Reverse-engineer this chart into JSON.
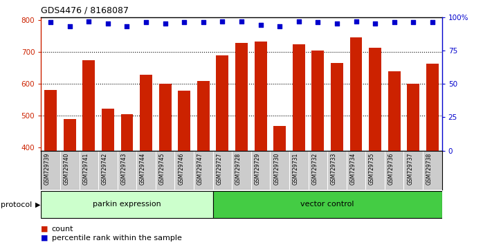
{
  "title": "GDS4476 / 8168087",
  "samples": [
    "GSM729739",
    "GSM729740",
    "GSM729741",
    "GSM729742",
    "GSM729743",
    "GSM729744",
    "GSM729745",
    "GSM729746",
    "GSM729747",
    "GSM729727",
    "GSM729728",
    "GSM729729",
    "GSM729730",
    "GSM729731",
    "GSM729732",
    "GSM729733",
    "GSM729734",
    "GSM729735",
    "GSM729736",
    "GSM729737",
    "GSM729738"
  ],
  "bar_values": [
    580,
    490,
    675,
    522,
    505,
    628,
    600,
    578,
    610,
    690,
    728,
    733,
    467,
    724,
    704,
    665,
    747,
    713,
    640,
    600,
    663
  ],
  "percentile_values": [
    96,
    93,
    97,
    95,
    93,
    96,
    95,
    96,
    96,
    97,
    97,
    94,
    93,
    97,
    96,
    95,
    97,
    95,
    96,
    96,
    96
  ],
  "bar_color": "#cc2200",
  "dot_color": "#0000cc",
  "ylim_left": [
    390,
    810
  ],
  "ylim_right": [
    0,
    100
  ],
  "yticks_left": [
    400,
    500,
    600,
    700,
    800
  ],
  "yticks_right": [
    0,
    25,
    50,
    75,
    100
  ],
  "ytick_labels_right": [
    "0",
    "25",
    "50",
    "75",
    "100%"
  ],
  "group1_label": "parkin expression",
  "group2_label": "vector control",
  "group1_count": 9,
  "group2_count": 12,
  "protocol_label": "protocol",
  "legend_count_label": "count",
  "legend_pct_label": "percentile rank within the sample",
  "bg_color": "#ffffff",
  "tick_area_color": "#cccccc",
  "group1_color": "#ccffcc",
  "group2_color": "#44cc44",
  "bar_bottom": 390
}
